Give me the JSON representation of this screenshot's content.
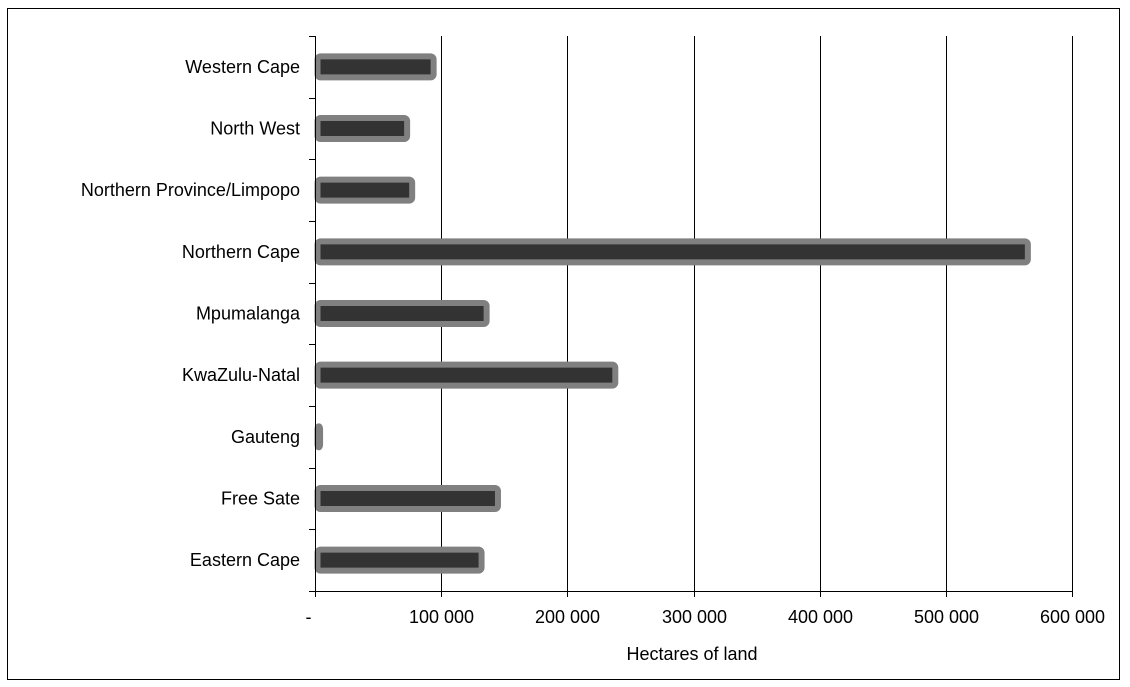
{
  "chart_data": {
    "type": "bar",
    "orientation": "horizontal",
    "title": "",
    "xlabel": "Hectares of land",
    "ylabel": "",
    "categories": [
      "Eastern Cape",
      "Free Sate",
      "Gauteng",
      "KwaZulu-Natal",
      "Mpumalanga",
      "Northern Cape",
      "Northern Province/Limpopo",
      "North West",
      "Western Cape"
    ],
    "values": [
      134000,
      147000,
      6000,
      240000,
      138000,
      567000,
      79000,
      75000,
      96000
    ],
    "xlim": [
      0,
      600000
    ],
    "xticks": [
      0,
      100000,
      200000,
      300000,
      400000,
      500000,
      600000
    ],
    "xtick_labels": [
      "-",
      "100 000",
      "200 000",
      "300 000",
      "400 000",
      "500 000",
      "600 000"
    ],
    "grid": "vertical",
    "legend": "none",
    "colors": {
      "bar_fill": "#333333",
      "bar_outline": "#808080",
      "gridline": "#000000"
    }
  }
}
